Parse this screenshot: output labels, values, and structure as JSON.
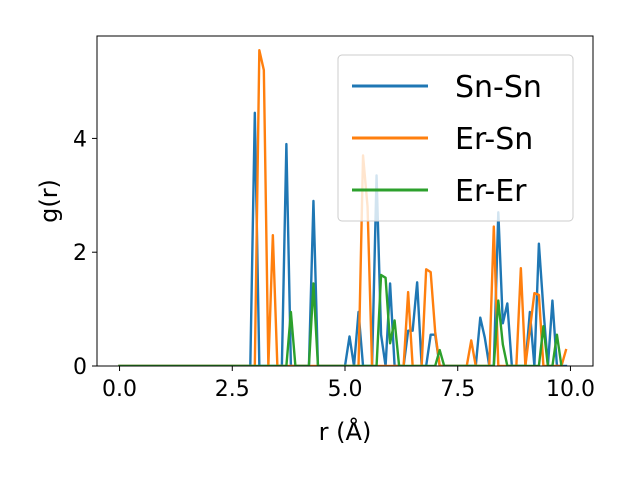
{
  "chart_data": {
    "type": "line",
    "title": "",
    "xlabel": "r (Å)",
    "ylabel": "g(r)",
    "xlim": [
      -0.5,
      10.5
    ],
    "ylim": [
      0,
      5.8
    ],
    "xticks": [
      {
        "value": 0.0,
        "label": "0.0"
      },
      {
        "value": 2.5,
        "label": "2.5"
      },
      {
        "value": 5.0,
        "label": "5.0"
      },
      {
        "value": 7.5,
        "label": "7.5"
      },
      {
        "value": 10.0,
        "label": "10.0"
      }
    ],
    "yticks": [
      {
        "value": 0,
        "label": "0"
      },
      {
        "value": 2,
        "label": "2"
      },
      {
        "value": 4,
        "label": "4"
      }
    ],
    "grid": false,
    "legend_position": "top-right",
    "series": [
      {
        "name": "Sn-Sn",
        "color": "#1f77b4",
        "x": [
          0.0,
          2.9,
          3.0,
          3.1,
          3.6,
          3.7,
          3.8,
          4.2,
          4.3,
          4.4,
          5.0,
          5.1,
          5.2,
          5.3,
          5.4,
          5.5,
          5.6,
          5.7,
          5.8,
          5.9,
          6.0,
          6.1,
          6.2,
          6.3,
          6.4,
          6.5,
          6.6,
          6.7,
          6.8,
          6.9,
          7.0,
          7.1,
          7.2,
          7.3,
          7.4,
          7.9,
          8.0,
          8.1,
          8.2,
          8.3,
          8.4,
          8.5,
          8.6,
          8.7,
          9.0,
          9.1,
          9.2,
          9.3,
          9.4,
          9.5,
          9.6,
          9.7,
          9.8,
          9.9
        ],
        "y": [
          0.0,
          0.0,
          4.45,
          0.0,
          0.0,
          3.9,
          0.0,
          0.0,
          2.9,
          0.0,
          0.0,
          0.52,
          0.0,
          0.95,
          0.0,
          0.0,
          0.0,
          3.35,
          0.55,
          0.0,
          1.45,
          0.0,
          0.0,
          0.0,
          0.62,
          0.62,
          1.47,
          0.0,
          0.0,
          0.55,
          0.55,
          0.0,
          0.0,
          0.0,
          0.0,
          0.0,
          0.85,
          0.5,
          0.0,
          0.0,
          2.7,
          0.75,
          1.1,
          0.0,
          0.0,
          0.95,
          0.0,
          2.15,
          1.0,
          0.0,
          1.15,
          0.0,
          0.0,
          0.0
        ]
      },
      {
        "name": "Er-Sn",
        "color": "#ff7f0e",
        "x": [
          0.0,
          2.9,
          3.0,
          3.1,
          3.2,
          3.3,
          3.4,
          3.5,
          5.2,
          5.3,
          5.4,
          5.5,
          5.6,
          5.7,
          6.3,
          6.4,
          6.5,
          6.6,
          6.7,
          6.8,
          6.9,
          7.0,
          7.1,
          7.2,
          7.6,
          7.7,
          7.8,
          7.9,
          8.1,
          8.2,
          8.3,
          8.4,
          8.5,
          8.8,
          8.9,
          9.0,
          9.2,
          9.3,
          9.4,
          9.5,
          9.8,
          9.9
        ],
        "y": [
          0.0,
          0.0,
          0.0,
          5.55,
          5.2,
          0.0,
          2.3,
          0.0,
          0.0,
          0.0,
          3.7,
          2.8,
          0.0,
          0.0,
          0.0,
          1.3,
          0.0,
          0.0,
          0.0,
          1.7,
          1.65,
          0.6,
          0.0,
          0.0,
          0.0,
          0.0,
          0.45,
          0.0,
          0.0,
          0.0,
          2.45,
          0.0,
          0.0,
          0.0,
          1.72,
          0.0,
          1.28,
          1.25,
          0.0,
          0.0,
          0.0,
          0.28
        ]
      },
      {
        "name": "Er-Er",
        "color": "#2ca02c",
        "x": [
          0.0,
          3.6,
          3.7,
          3.8,
          3.9,
          4.2,
          4.3,
          4.4,
          5.6,
          5.7,
          5.8,
          5.9,
          6.0,
          6.1,
          6.2,
          6.3,
          7.0,
          7.1,
          7.2,
          8.3,
          8.4,
          8.5,
          8.6,
          8.7,
          9.2,
          9.3,
          9.4,
          9.5,
          9.6,
          9.7,
          9.8
        ],
        "y": [
          0.0,
          0.0,
          0.0,
          0.95,
          0.0,
          0.0,
          1.45,
          0.0,
          0.0,
          0.0,
          1.6,
          1.55,
          0.4,
          0.8,
          0.0,
          0.0,
          0.0,
          0.28,
          0.0,
          0.0,
          1.15,
          0.38,
          0.0,
          0.0,
          0.0,
          0.0,
          0.7,
          0.0,
          0.0,
          0.55,
          0.0
        ]
      }
    ]
  }
}
